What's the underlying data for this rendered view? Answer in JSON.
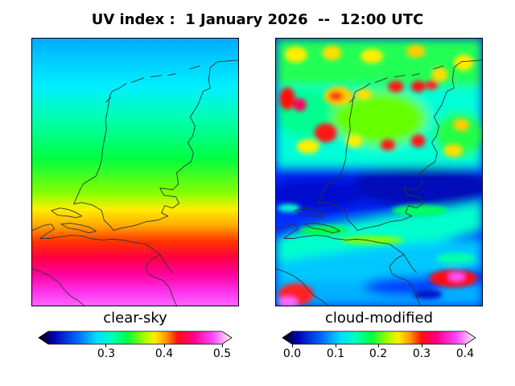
{
  "title": "UV index :  1 January 2026  --  12:00 UTC",
  "panels": [
    {
      "label": "clear-sky",
      "colorbar_ticks": [
        "0.3",
        "0.4",
        "0.5"
      ]
    },
    {
      "label": "cloud-modified",
      "colorbar_ticks": [
        "0.0",
        "0.1",
        "0.2",
        "0.3",
        "0.4"
      ]
    }
  ],
  "colors": {
    "colormap": [
      "#000000",
      "#0000c0",
      "#0055ff",
      "#00bbff",
      "#00ffd0",
      "#00ff55",
      "#66ff00",
      "#ffee00",
      "#ff9900",
      "#ff1010",
      "#ff00aa",
      "#ff55ff",
      "#ffffff"
    ],
    "coastline": "#333333"
  }
}
